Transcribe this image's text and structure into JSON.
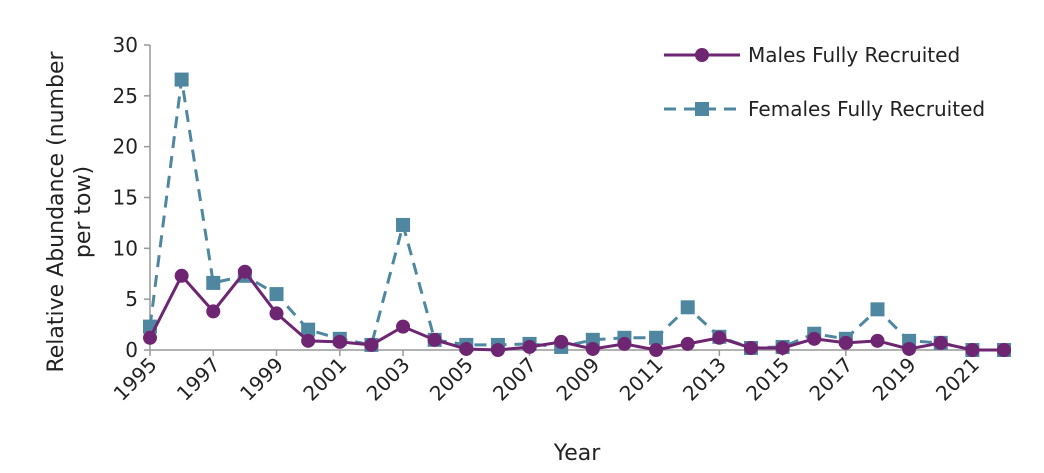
{
  "chart_data": {
    "type": "line",
    "x_label": "Year",
    "y_label": "Relative Abundance (number per tow)",
    "x": [
      1995,
      1996,
      1997,
      1998,
      1999,
      2000,
      2001,
      2002,
      2003,
      2004,
      2005,
      2006,
      2007,
      2008,
      2009,
      2010,
      2011,
      2012,
      2013,
      2014,
      2015,
      2016,
      2017,
      2018,
      2019,
      2020,
      2021,
      2022
    ],
    "series": [
      {
        "name": "Males Fully Recruited",
        "color": "#6e2572",
        "marker": "circle",
        "dash": false,
        "values": [
          1.2,
          7.3,
          3.8,
          7.7,
          3.6,
          0.9,
          0.8,
          0.5,
          2.3,
          1.0,
          0.1,
          0.0,
          0.3,
          0.8,
          0.1,
          0.6,
          0.0,
          0.6,
          1.2,
          0.2,
          0.2,
          1.1,
          0.7,
          0.9,
          0.1,
          0.7,
          0.0,
          0.0
        ]
      },
      {
        "name": "Females Fully Recruited",
        "color": "#4f87a0",
        "marker": "square",
        "dash": true,
        "values": [
          2.3,
          26.6,
          6.6,
          7.3,
          5.5,
          2.0,
          1.1,
          0.5,
          12.3,
          1.0,
          0.5,
          0.5,
          0.6,
          0.3,
          1.0,
          1.2,
          1.2,
          4.2,
          1.3,
          0.2,
          0.3,
          1.6,
          1.1,
          4.0,
          0.9,
          0.7,
          0.0,
          0.0
        ]
      }
    ],
    "xlim": [
      1995,
      2022
    ],
    "xticks": [
      1995,
      1997,
      1999,
      2001,
      2003,
      2005,
      2007,
      2009,
      2011,
      2013,
      2015,
      2017,
      2019,
      2021
    ],
    "ylim": [
      0,
      30
    ],
    "yticks": [
      0,
      5,
      10,
      15,
      20,
      25,
      30
    ],
    "legend": "upper right"
  }
}
